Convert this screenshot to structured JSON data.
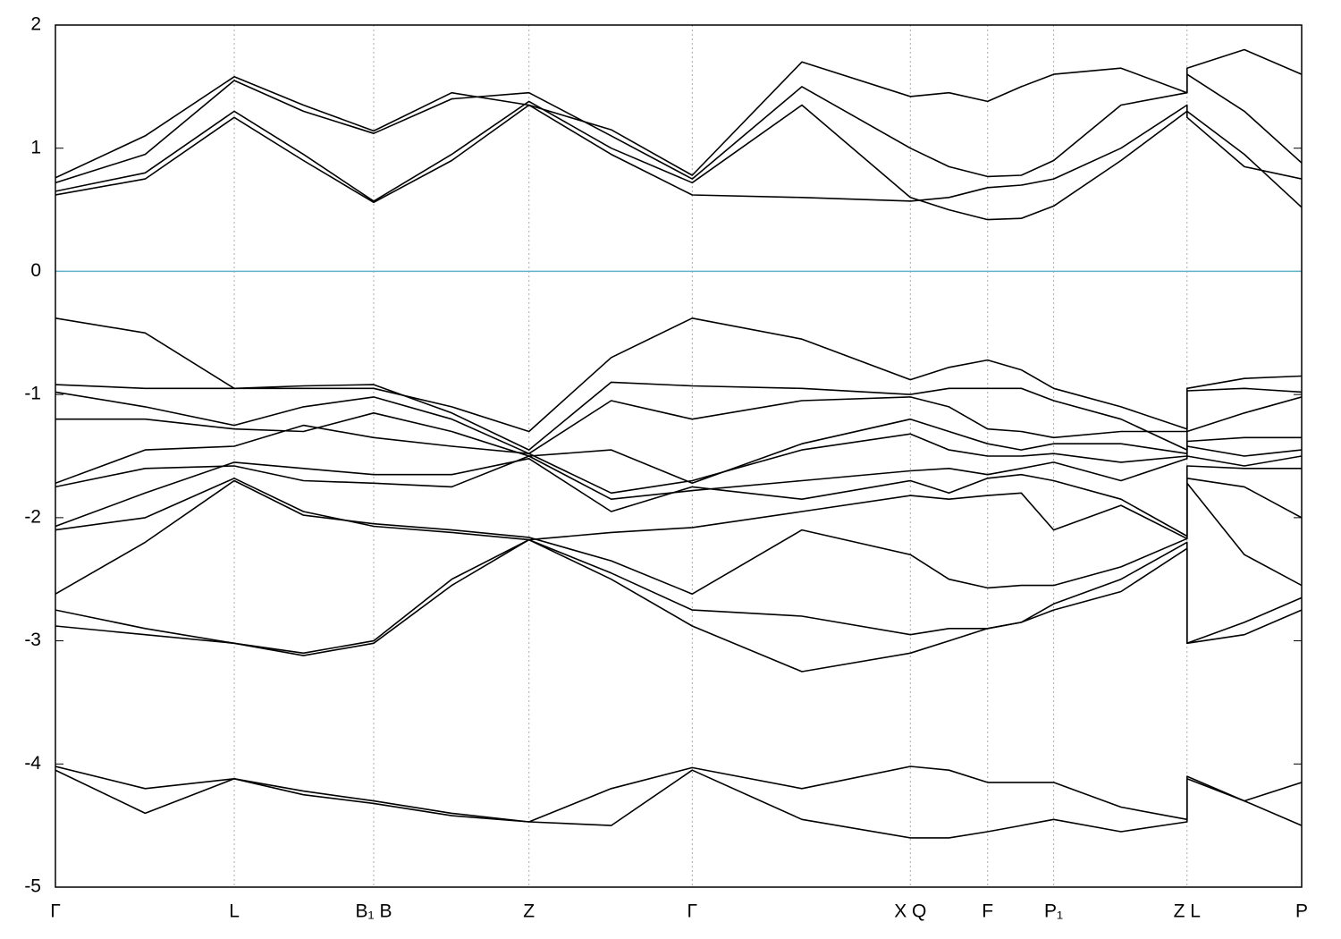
{
  "chart_data": {
    "type": "line",
    "xlim": [
      0,
      1
    ],
    "ylim": [
      -5,
      2
    ],
    "xticks": [
      {
        "value": 0,
        "label": "Γ"
      },
      {
        "value": 0.1435,
        "label": "L"
      },
      {
        "value": 0.2554,
        "label": "B₁ B"
      },
      {
        "value": 0.38,
        "label": "Z"
      },
      {
        "value": 0.511,
        "label": "Γ"
      },
      {
        "value": 0.686,
        "label": "X Q"
      },
      {
        "value": 0.748,
        "label": "F"
      },
      {
        "value": 0.801,
        "label": "P₁"
      },
      {
        "value": 0.908,
        "label": "Z L"
      },
      {
        "value": 1,
        "label": "P"
      }
    ],
    "yticks": [
      -5,
      -4,
      -3,
      -2,
      -1,
      0,
      1,
      2
    ],
    "xgrid": true,
    "grid_color": "#aaaaaa",
    "fermi_level": 0,
    "fermi_color": "#5fb3c9",
    "x": [
      0,
      0.072,
      0.1435,
      0.199,
      0.2554,
      0.318,
      0.38,
      0.446,
      0.511,
      0.599,
      0.686,
      0.717,
      0.748,
      0.775,
      0.801,
      0.855,
      0.908,
      0.908,
      0.954,
      1
    ],
    "series": [
      {
        "color": "#000000",
        "values": [
          0.62,
          0.75,
          1.25,
          0.9,
          0.56,
          0.9,
          1.35,
          0.95,
          0.62,
          0.6,
          0.57,
          0.6,
          0.68,
          0.7,
          0.75,
          1.0,
          1.35,
          1.3,
          0.95,
          0.52
        ]
      },
      {
        "color": "#000000",
        "values": [
          0.65,
          0.8,
          1.3,
          0.95,
          0.57,
          0.95,
          1.38,
          1.0,
          0.72,
          1.35,
          0.6,
          0.5,
          0.42,
          0.43,
          0.53,
          0.9,
          1.3,
          1.25,
          0.85,
          0.75
        ]
      },
      {
        "color": "#000000",
        "values": [
          0.72,
          0.95,
          1.55,
          1.3,
          1.12,
          1.4,
          1.45,
          1.1,
          0.75,
          1.5,
          1.0,
          0.85,
          0.77,
          0.78,
          0.9,
          1.35,
          1.45,
          1.6,
          1.3,
          0.88
        ]
      },
      {
        "color": "#000000",
        "values": [
          0.76,
          1.1,
          1.58,
          1.35,
          1.14,
          1.45,
          1.35,
          1.15,
          0.78,
          1.7,
          1.42,
          1.45,
          1.38,
          1.5,
          1.6,
          1.65,
          1.45,
          1.65,
          1.8,
          1.6
        ]
      },
      {
        "color": "#000000",
        "values": [
          -0.38,
          -0.5,
          -0.95,
          -0.95,
          -0.95,
          -1.1,
          -1.3,
          -0.7,
          -0.38,
          -0.55,
          -0.88,
          -0.78,
          -0.72,
          -0.8,
          -0.95,
          -1.1,
          -1.28,
          -0.95,
          -0.87,
          -0.85
        ]
      },
      {
        "color": "#000000",
        "values": [
          -0.92,
          -0.95,
          -0.95,
          -0.93,
          -0.92,
          -1.15,
          -1.45,
          -0.9,
          -0.93,
          -0.95,
          -1.0,
          -0.95,
          -0.95,
          -0.95,
          -1.05,
          -1.2,
          -1.45,
          -0.97,
          -0.95,
          -0.98
        ]
      },
      {
        "color": "#000000",
        "values": [
          -0.98,
          -1.1,
          -1.25,
          -1.1,
          -1.02,
          -1.2,
          -1.48,
          -1.05,
          -1.2,
          -1.05,
          -1.02,
          -1.1,
          -1.28,
          -1.3,
          -1.35,
          -1.3,
          -1.3,
          -1.3,
          -1.15,
          -1.02
        ]
      },
      {
        "color": "#000000",
        "values": [
          -1.2,
          -1.2,
          -1.28,
          -1.3,
          -1.15,
          -1.3,
          -1.5,
          -1.45,
          -1.72,
          -1.4,
          -1.2,
          -1.3,
          -1.4,
          -1.45,
          -1.4,
          -1.4,
          -1.48,
          -1.38,
          -1.35,
          -1.35
        ]
      },
      {
        "color": "#000000",
        "values": [
          -1.72,
          -1.45,
          -1.42,
          -1.25,
          -1.35,
          -1.42,
          -1.48,
          -1.8,
          -1.7,
          -1.45,
          -1.32,
          -1.45,
          -1.5,
          -1.5,
          -1.48,
          -1.55,
          -1.5,
          -1.42,
          -1.5,
          -1.45
        ]
      },
      {
        "color": "#000000",
        "values": [
          -1.75,
          -1.6,
          -1.58,
          -1.7,
          -1.72,
          -1.75,
          -1.5,
          -1.85,
          -1.78,
          -1.7,
          -1.62,
          -1.6,
          -1.65,
          -1.6,
          -1.55,
          -1.7,
          -1.52,
          -1.5,
          -1.58,
          -1.5
        ]
      },
      {
        "color": "#000000",
        "values": [
          -2.07,
          -1.8,
          -1.55,
          -1.6,
          -1.65,
          -1.65,
          -1.52,
          -1.95,
          -1.75,
          -1.85,
          -1.7,
          -1.8,
          -1.68,
          -1.65,
          -1.7,
          -1.85,
          -2.15,
          -1.58,
          -1.6,
          -1.6
        ]
      },
      {
        "color": "#000000",
        "values": [
          -2.1,
          -2.0,
          -1.68,
          -1.95,
          -2.07,
          -2.12,
          -2.18,
          -2.12,
          -2.08,
          -1.95,
          -1.82,
          -1.85,
          -1.82,
          -1.8,
          -2.1,
          -1.9,
          -2.17,
          -1.68,
          -1.75,
          -2.0
        ]
      },
      {
        "color": "#000000",
        "values": [
          -2.62,
          -2.2,
          -1.7,
          -1.98,
          -2.05,
          -2.1,
          -2.16,
          -2.35,
          -2.62,
          -2.1,
          -2.3,
          -2.5,
          -2.57,
          -2.55,
          -2.55,
          -2.4,
          -2.17,
          -1.72,
          -2.3,
          -2.55
        ]
      },
      {
        "color": "#000000",
        "values": [
          -2.75,
          -2.9,
          -3.02,
          -3.1,
          -3.0,
          -2.5,
          -2.18,
          -2.45,
          -2.75,
          -2.8,
          -2.95,
          -2.9,
          -2.9,
          -2.85,
          -2.7,
          -2.5,
          -2.2,
          -3.02,
          -2.85,
          -2.65
        ]
      },
      {
        "color": "#000000",
        "values": [
          -2.88,
          -2.95,
          -3.02,
          -3.12,
          -3.02,
          -2.55,
          -2.18,
          -2.5,
          -2.88,
          -3.25,
          -3.1,
          -3.0,
          -2.9,
          -2.85,
          -2.75,
          -2.6,
          -2.25,
          -3.02,
          -2.95,
          -2.75
        ]
      },
      {
        "color": "#000000",
        "values": [
          -4.02,
          -4.2,
          -4.12,
          -4.22,
          -4.3,
          -4.4,
          -4.47,
          -4.2,
          -4.03,
          -4.2,
          -4.02,
          -4.05,
          -4.15,
          -4.15,
          -4.15,
          -4.35,
          -4.45,
          -4.1,
          -4.3,
          -4.15
        ]
      },
      {
        "color": "#000000",
        "values": [
          -4.05,
          -4.4,
          -4.12,
          -4.25,
          -4.32,
          -4.42,
          -4.47,
          -4.5,
          -4.05,
          -4.45,
          -4.6,
          -4.6,
          -4.55,
          -4.5,
          -4.45,
          -4.55,
          -4.47,
          -4.12,
          -4.3,
          -4.5
        ]
      }
    ]
  }
}
